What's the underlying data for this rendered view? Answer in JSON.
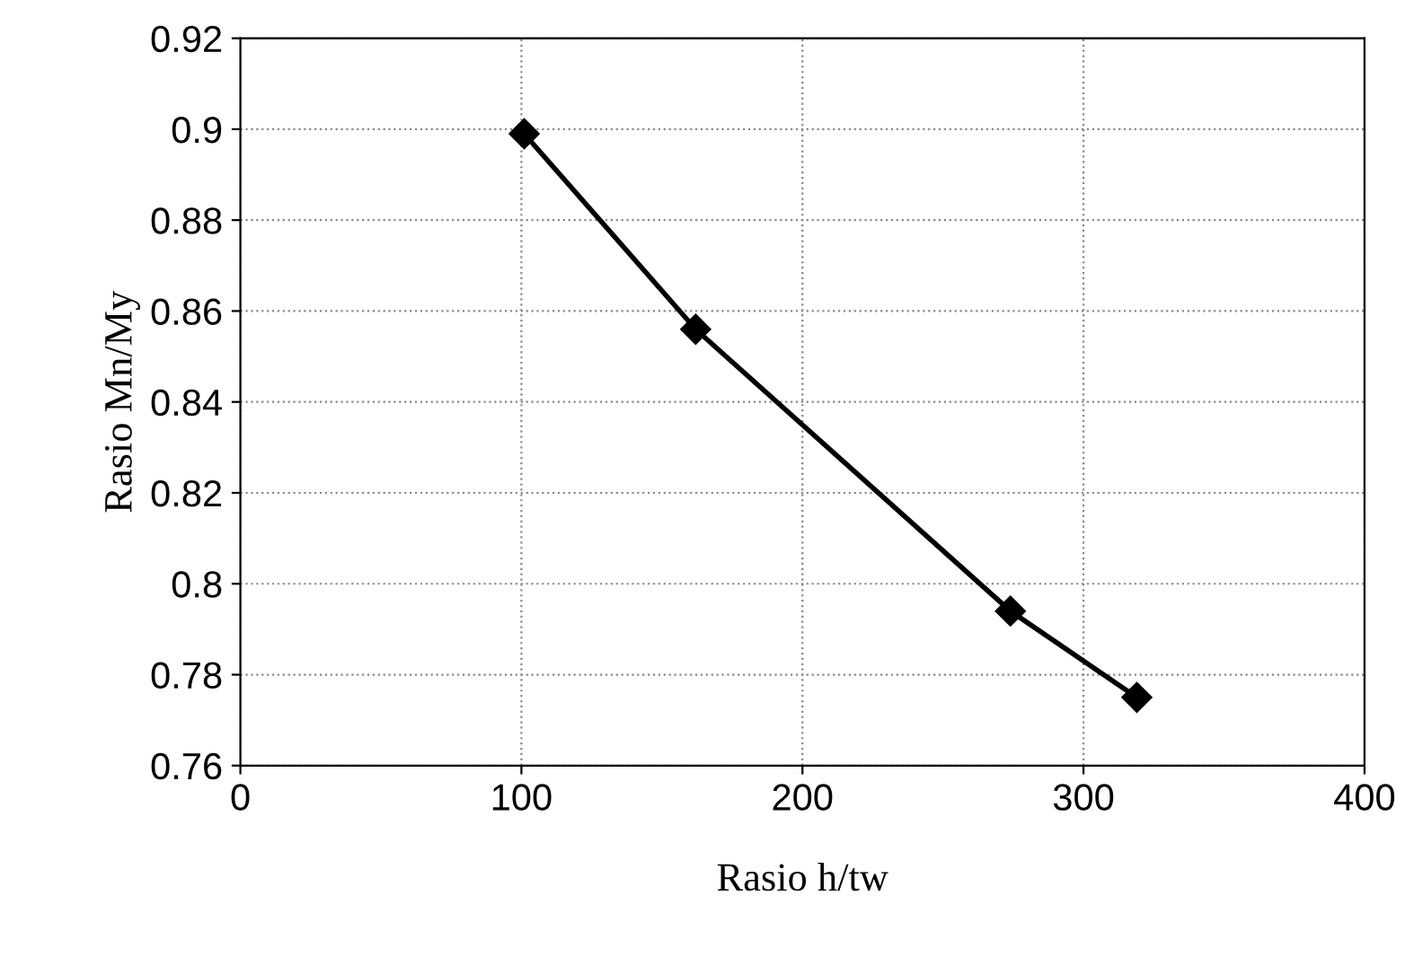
{
  "chart_data": {
    "type": "line",
    "xlabel": "Rasio h/tw",
    "ylabel": "Rasio Mn/My",
    "x": [
      101,
      162,
      274,
      319
    ],
    "series": [
      {
        "color": "#000000",
        "values": [
          0.899,
          0.856,
          0.794,
          0.775
        ]
      }
    ],
    "xlim": [
      0,
      400
    ],
    "xticks": [
      0,
      100,
      200,
      300,
      400
    ],
    "ylim": [
      0.76,
      0.92
    ],
    "yticks": [
      0.76,
      0.78,
      0.8,
      0.82,
      0.84,
      0.86,
      0.88,
      0.9,
      0.92
    ],
    "grid": true,
    "marker": "diamond",
    "line_style": "solid"
  }
}
